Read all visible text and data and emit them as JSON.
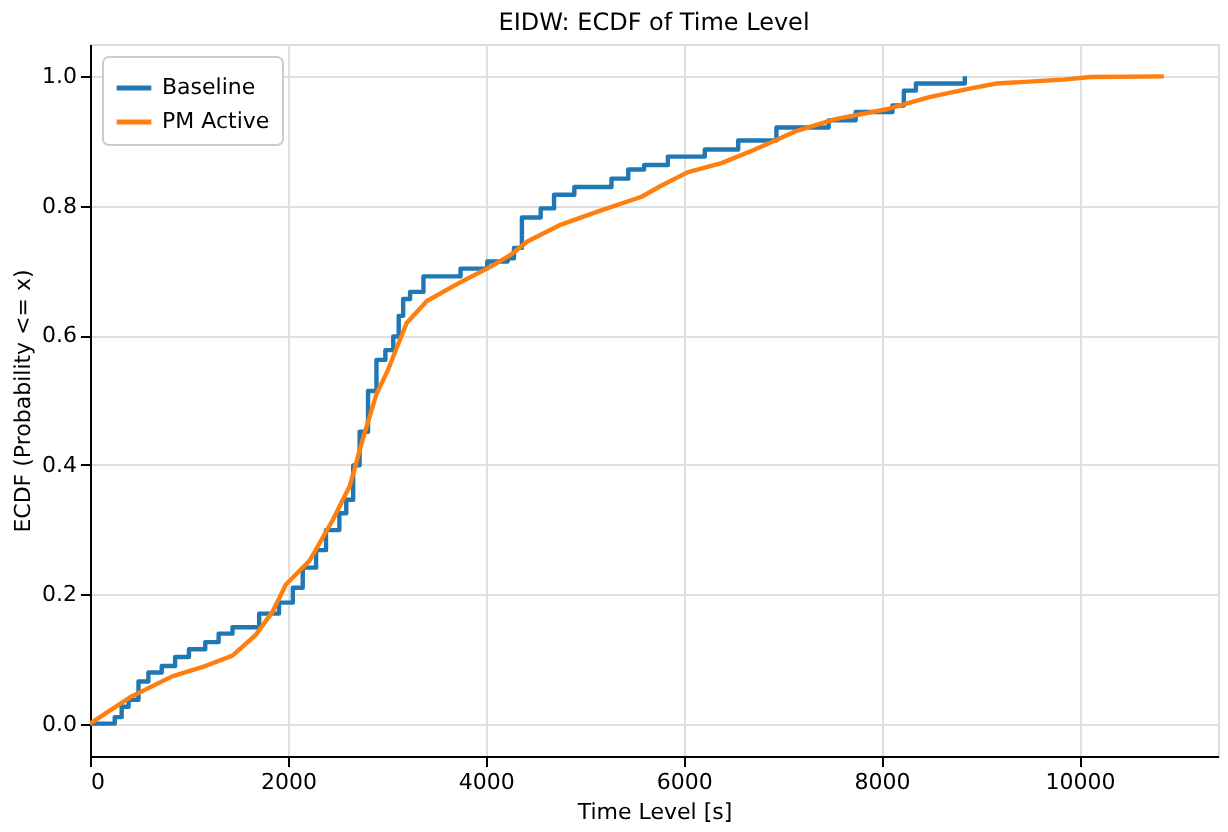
{
  "chart_data": {
    "type": "line",
    "title": "EIDW: ECDF of Time Level",
    "xlabel": "Time Level [s]",
    "ylabel": "ECDF (Probability <= x)",
    "xlim": [
      0,
      11400
    ],
    "ylim": [
      -0.05,
      1.05
    ],
    "xticks": [
      0,
      2000,
      4000,
      6000,
      8000,
      10000
    ],
    "yticks": [
      {
        "value": 0,
        "label": "0.0"
      },
      0.2,
      0.4,
      0.6,
      0.8,
      {
        "value": 1,
        "label": "1.0"
      }
    ],
    "grid": true,
    "legend": "top left",
    "line_style": "solid",
    "marker": "none",
    "series": [
      {
        "name": "Baseline",
        "type": "step",
        "color": "#1f77b4",
        "x": [
          0,
          250,
          320,
          390,
          490,
          590,
          725,
          860,
          1000,
          1165,
          1300,
          1440,
          1710,
          1910,
          2050,
          2150,
          2285,
          2385,
          2520,
          2590,
          2660,
          2725,
          2810,
          2895,
          2985,
          3065,
          3120,
          3165,
          3235,
          3370,
          3745,
          4015,
          4220,
          4285,
          4365,
          4555,
          4690,
          4895,
          5270,
          5440,
          5600,
          5840,
          6213,
          6551,
          6937,
          7465,
          7738,
          8110,
          8225,
          8347,
          8841
        ],
        "values": [
          0,
          0.01,
          0.026,
          0.037,
          0.065,
          0.079,
          0.089,
          0.103,
          0.115,
          0.126,
          0.139,
          0.149,
          0.17,
          0.187,
          0.21,
          0.241,
          0.268,
          0.299,
          0.325,
          0.346,
          0.399,
          0.451,
          0.514,
          0.562,
          0.577,
          0.598,
          0.63,
          0.656,
          0.667,
          0.691,
          0.703,
          0.714,
          0.719,
          0.735,
          0.782,
          0.796,
          0.817,
          0.829,
          0.842,
          0.856,
          0.863,
          0.876,
          0.887,
          0.901,
          0.921,
          0.932,
          0.945,
          0.955,
          0.978,
          0.989,
          1.0
        ]
      },
      {
        "name": "PM Active",
        "type": "line",
        "color": "#ff7f0e",
        "x": [
          0,
          420,
          830,
          1165,
          1440,
          1675,
          1845,
          1980,
          2220,
          2455,
          2625,
          2760,
          2895,
          3010,
          3200,
          3405,
          3745,
          4050,
          4250,
          4420,
          4760,
          5165,
          5575,
          5772,
          6043,
          6382,
          6720,
          7127,
          7533,
          8075,
          8482,
          8889,
          9160,
          9837,
          10108,
          10853
        ],
        "values": [
          0,
          0.042,
          0.073,
          0.089,
          0.105,
          0.137,
          0.173,
          0.215,
          0.252,
          0.315,
          0.367,
          0.441,
          0.509,
          0.546,
          0.619,
          0.653,
          0.682,
          0.706,
          0.724,
          0.745,
          0.771,
          0.793,
          0.814,
          0.831,
          0.852,
          0.866,
          0.887,
          0.915,
          0.934,
          0.95,
          0.968,
          0.981,
          0.989,
          0.995,
          0.999,
          1.0
        ]
      }
    ]
  }
}
